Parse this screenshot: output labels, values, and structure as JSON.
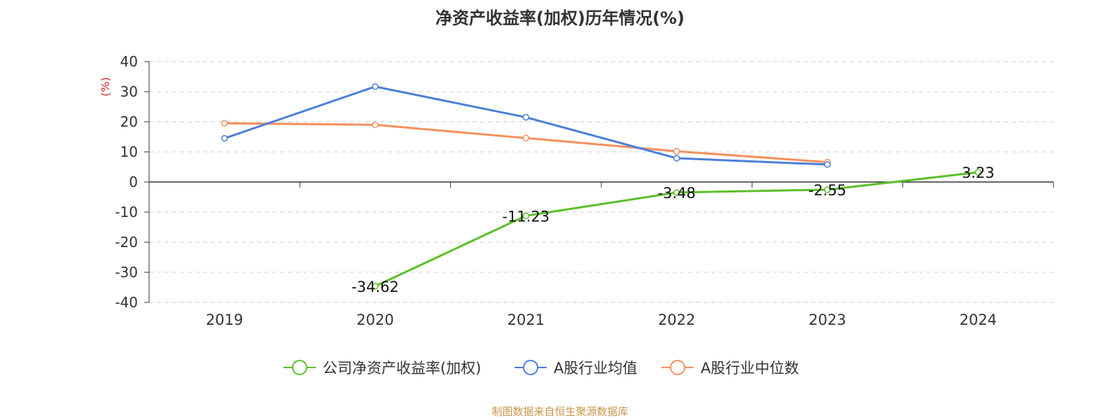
{
  "chart_data": {
    "type": "line",
    "title": "净资产收益率(加权)历年情况(%)",
    "ylabel": "(%)",
    "xlabel": "",
    "categories": [
      "2019",
      "2020",
      "2021",
      "2022",
      "2023",
      "2024"
    ],
    "ylim": [
      -40,
      40
    ],
    "yticks": [
      40,
      30,
      20,
      10,
      0,
      -10,
      -20,
      -30,
      -40
    ],
    "grid": true,
    "legend_position": "bottom",
    "series": [
      {
        "name": "公司净资产收益率(加权)",
        "color": "#5bbf2a",
        "values": [
          null,
          -34.62,
          -11.23,
          -3.48,
          -2.55,
          3.23
        ],
        "data_labels": [
          "",
          "-34.62",
          "-11.23",
          "-3.48",
          "-2.55",
          "3.23"
        ]
      },
      {
        "name": "A股行业均值",
        "color": "#4a7fd9",
        "values": [
          14.5,
          31.7,
          21.5,
          7.9,
          5.8,
          null
        ]
      },
      {
        "name": "A股行业中位数",
        "color": "#f5905c",
        "values": [
          19.5,
          19.0,
          14.6,
          10.2,
          6.6,
          null
        ]
      }
    ]
  },
  "source": "制图数据来自恒生聚源数据库"
}
